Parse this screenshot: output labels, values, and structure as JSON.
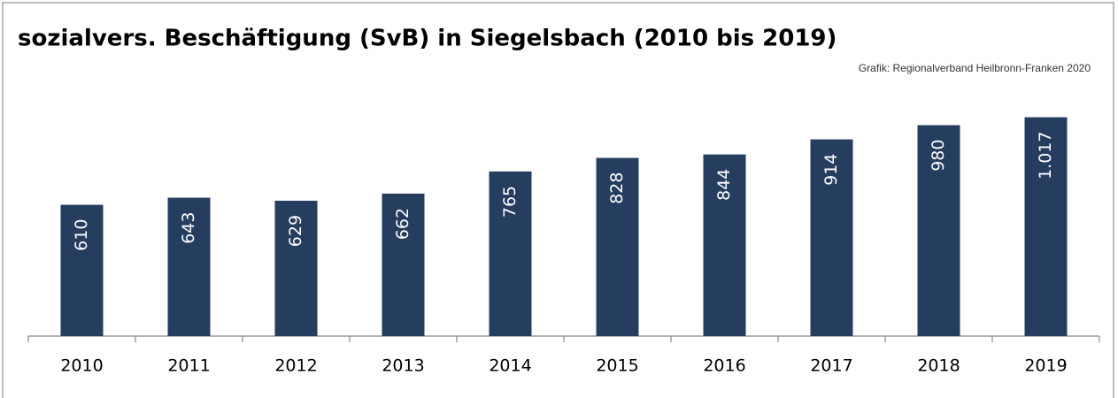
{
  "chart_data": {
    "type": "bar",
    "title": "sozialvers. Beschäftigung (SvB) in Siegelsbach (2010 bis 2019)",
    "source": "Grafik: Regionalverband Heilbronn-Franken 2020",
    "categories": [
      "2010",
      "2011",
      "2012",
      "2013",
      "2014",
      "2015",
      "2016",
      "2017",
      "2018",
      "2019"
    ],
    "values": [
      610,
      643,
      629,
      662,
      765,
      828,
      844,
      914,
      980,
      1017
    ],
    "value_labels": [
      "610",
      "643",
      "629",
      "662",
      "765",
      "828",
      "844",
      "914",
      "980",
      "1.017"
    ],
    "color": "#253d5e",
    "ylim": [
      0,
      1200
    ]
  }
}
